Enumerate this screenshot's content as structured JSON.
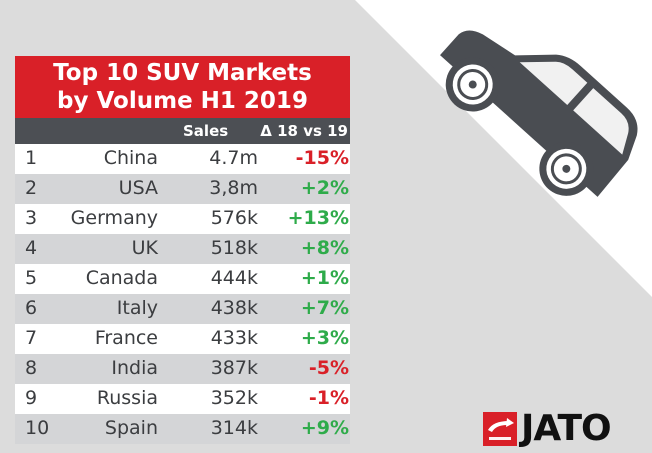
{
  "chart_data": {
    "type": "table",
    "title_line1": "Top 10 SUV Markets",
    "title_line2": "by Volume H1 2019",
    "columns": [
      "",
      "",
      "Sales",
      "Δ 18 vs 19"
    ],
    "rows": [
      {
        "rank": "1",
        "country": "China",
        "sales": "4.7m",
        "change": "-15%",
        "direction": "down"
      },
      {
        "rank": "2",
        "country": "USA",
        "sales": "3,8m",
        "change": "+2%",
        "direction": "up"
      },
      {
        "rank": "3",
        "country": "Germany",
        "sales": "576k",
        "change": "+13%",
        "direction": "up"
      },
      {
        "rank": "4",
        "country": "UK",
        "sales": "518k",
        "change": "+8%",
        "direction": "up"
      },
      {
        "rank": "5",
        "country": "Canada",
        "sales": "444k",
        "change": "+1%",
        "direction": "up"
      },
      {
        "rank": "6",
        "country": "Italy",
        "sales": "438k",
        "change": "+7%",
        "direction": "up"
      },
      {
        "rank": "7",
        "country": "France",
        "sales": "433k",
        "change": "+3%",
        "direction": "up"
      },
      {
        "rank": "8",
        "country": "India",
        "sales": "387k",
        "change": "-5%",
        "direction": "down"
      },
      {
        "rank": "9",
        "country": "Russia",
        "sales": "352k",
        "change": "-1%",
        "direction": "down"
      },
      {
        "rank": "10",
        "country": "Spain",
        "sales": "314k",
        "change": "+9%",
        "direction": "up"
      }
    ]
  },
  "colors": {
    "title_bg": "#d92028",
    "header_bg": "#4c4f54",
    "positive": "#2eab4a",
    "negative": "#d92028",
    "backdrop": "#dcdcdc",
    "car": "#4a4d52"
  },
  "logo": {
    "text": "JATO",
    "icon": "jato-arrow-icon"
  },
  "illustration": {
    "icon": "suv-car-icon"
  }
}
